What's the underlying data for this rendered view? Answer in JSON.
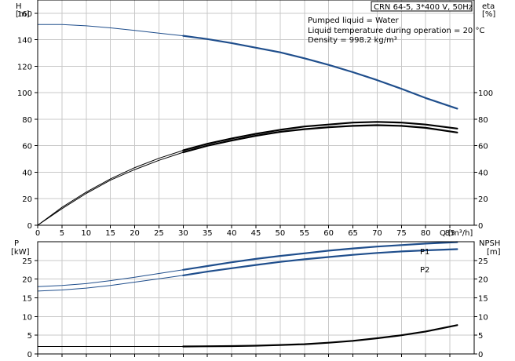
{
  "chart_data": {
    "type": "line",
    "title": "CRN 64-5, 3*400 V, 50Hz",
    "info_lines": [
      "Pumped liquid = Water",
      "Liquid temperature during operation = 20 °C",
      "Density = 998.2 kg/m³"
    ],
    "xlabel": "Q [m³/h]",
    "xlim": [
      0,
      90
    ],
    "xticks": [
      0,
      5,
      10,
      15,
      20,
      25,
      30,
      35,
      40,
      45,
      50,
      55,
      60,
      65,
      70,
      75,
      80,
      85
    ],
    "colors": {
      "head": "#1f4e8c",
      "power": "#1f4e8c",
      "eta": "#000000",
      "npsh": "#000000",
      "grid": "#c8c8c8"
    },
    "top_panel": {
      "left_axis_label": [
        "H",
        "[m]"
      ],
      "right_axis_label": [
        "eta",
        "[%]"
      ],
      "ylim": [
        0,
        170
      ],
      "left_ticks": [
        0,
        20,
        40,
        60,
        80,
        100,
        120,
        140,
        160
      ],
      "right_ticks": [
        0,
        20,
        40,
        60,
        80,
        100
      ],
      "series": [
        {
          "key": "head",
          "x": [
            0,
            5,
            10,
            15,
            20,
            25,
            30,
            35,
            40,
            45,
            50,
            55,
            60,
            65,
            70,
            75,
            80,
            86.5
          ],
          "values": [
            151.5,
            151.5,
            150.5,
            149,
            147,
            145,
            143,
            140.5,
            137.5,
            134,
            130.5,
            126,
            121,
            115.5,
            109.5,
            103,
            96,
            88
          ],
          "bold_from": 30
        },
        {
          "key": "eta",
          "x": [
            0,
            5,
            10,
            15,
            20,
            25,
            30,
            35,
            40,
            45,
            50,
            55,
            60,
            65,
            70,
            75,
            80,
            86.5
          ],
          "values": [
            0,
            13.5,
            25,
            35,
            43.5,
            50.5,
            56.5,
            61.5,
            65.5,
            69,
            72,
            74.5,
            76,
            77.5,
            78,
            77.5,
            76,
            73
          ],
          "bold_from": 30
        },
        {
          "key": "eta",
          "x": [
            0,
            5,
            10,
            15,
            20,
            25,
            30,
            35,
            40,
            45,
            50,
            55,
            60,
            65,
            70,
            75,
            80,
            86.5
          ],
          "values": [
            0,
            12.5,
            24,
            34,
            42,
            49,
            55,
            60,
            64,
            67.5,
            70.5,
            72.5,
            74,
            75,
            75.5,
            75,
            73.5,
            70
          ],
          "bold_from": 30
        }
      ]
    },
    "bottom_panel": {
      "left_axis_label": [
        "P",
        "[kW]"
      ],
      "right_axis_label": [
        "NPSH",
        "[m]"
      ],
      "ylim": [
        0,
        30
      ],
      "left_ticks": [
        0,
        5,
        10,
        15,
        20,
        25
      ],
      "right_ticks": [
        0,
        5,
        10,
        15,
        20,
        25
      ],
      "series": [
        {
          "key": "power",
          "name": "P1",
          "x": [
            0,
            5,
            10,
            15,
            20,
            25,
            30,
            35,
            40,
            45,
            50,
            55,
            60,
            65,
            70,
            75,
            80,
            86.5
          ],
          "values": [
            18,
            18.3,
            18.8,
            19.6,
            20.5,
            21.5,
            22.5,
            23.5,
            24.5,
            25.4,
            26.2,
            26.9,
            27.6,
            28.2,
            28.7,
            29.1,
            29.5,
            29.9
          ],
          "bold_from": 30
        },
        {
          "key": "power",
          "name": "P2",
          "x": [
            0,
            5,
            10,
            15,
            20,
            25,
            30,
            35,
            40,
            45,
            50,
            55,
            60,
            65,
            70,
            75,
            80,
            86.5
          ],
          "values": [
            16.8,
            17.1,
            17.6,
            18.3,
            19.2,
            20.1,
            21,
            22,
            22.9,
            23.8,
            24.6,
            25.3,
            25.9,
            26.5,
            27,
            27.4,
            27.7,
            28
          ],
          "bold_from": 30
        },
        {
          "key": "npsh",
          "x": [
            0,
            30,
            40,
            45,
            50,
            55,
            60,
            65,
            70,
            75,
            80,
            86.5
          ],
          "values": [
            2,
            2,
            2.1,
            2.2,
            2.4,
            2.6,
            3,
            3.5,
            4.2,
            5,
            6,
            7.7
          ],
          "bold_from": 30
        }
      ]
    }
  }
}
